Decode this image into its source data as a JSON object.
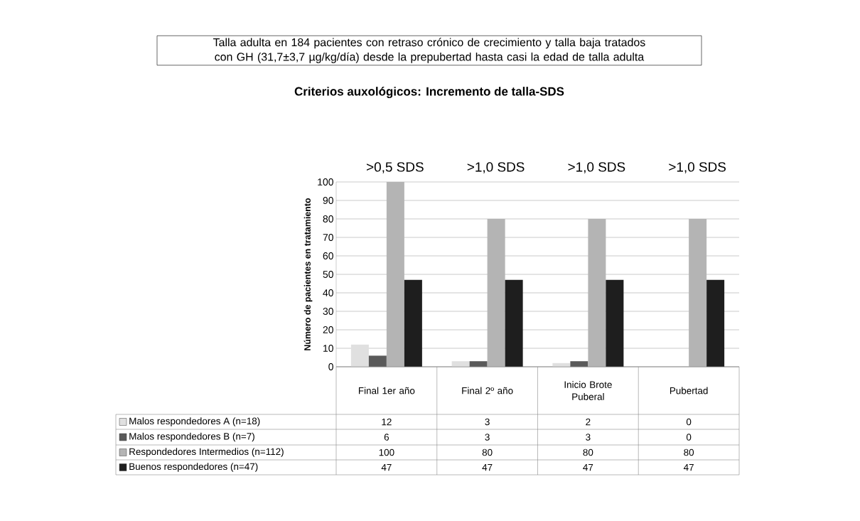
{
  "chart_data": {
    "type": "bar",
    "title": "Talla adulta en 184 pacientes con retraso crónico de crecimiento y talla baja tratados con GH (31,7±3,7 µg/kg/día) desde la prepubertad hasta casi la edad de talla adulta",
    "subtitle": "Criterios auxológicos: Incremento de talla-SDS",
    "ylabel": "Número de pacientes en tratamiento",
    "annotations": [
      ">0,5 SDS",
      ">1,0 SDS",
      ">1,0 SDS",
      ">1,0 SDS"
    ],
    "categories": [
      "Final 1er año",
      "Final 2º año",
      "Inicio Brote Puberal",
      "Pubertad"
    ],
    "series": [
      {
        "name": "Malos respondedores A (n=18)",
        "color": "#e0e0e0",
        "values": [
          12,
          3,
          2,
          0
        ]
      },
      {
        "name": "Malos respondedores B (n=7)",
        "color": "#5a5a5a",
        "values": [
          6,
          3,
          3,
          0
        ]
      },
      {
        "name": "Respondedores Intermedios (n=112)",
        "color": "#b4b4b4",
        "values": [
          100,
          80,
          80,
          80
        ]
      },
      {
        "name": "Buenos respondedores (n=47)",
        "color": "#1e1e1e",
        "values": [
          47,
          47,
          47,
          47
        ]
      }
    ],
    "ylim": [
      0,
      100
    ],
    "yticks": [
      0,
      10,
      20,
      30,
      40,
      50,
      60,
      70,
      80,
      90,
      100
    ],
    "grid": "y",
    "legend": "bottom left",
    "data_labels": true
  }
}
